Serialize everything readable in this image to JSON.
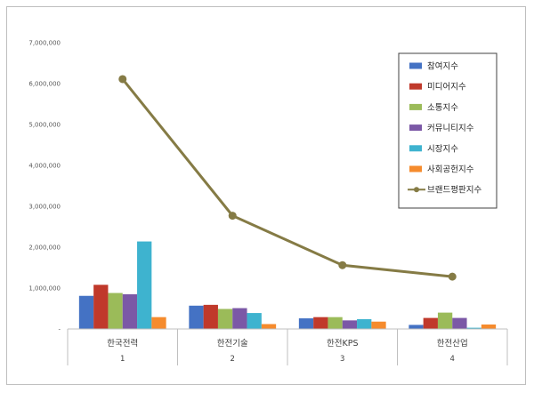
{
  "chart_data": {
    "type": "bar",
    "categories": [
      "한국전력",
      "한전기술",
      "한전KPS",
      "한전산업"
    ],
    "category_index": [
      "1",
      "2",
      "3",
      "4"
    ],
    "ylim": [
      0,
      7000000
    ],
    "yticks": [
      0,
      1000000,
      2000000,
      3000000,
      4000000,
      5000000,
      6000000,
      7000000
    ],
    "ytick_labels": [
      "-",
      "1,000,000",
      "2,000,000",
      "3,000,000",
      "4,000,000",
      "5,000,000",
      "6,000,000",
      "7,000,000"
    ],
    "grid": false,
    "legend_position": "top-right",
    "series": [
      {
        "name": "참여지수",
        "color": "#4472c4",
        "values": [
          810000,
          570000,
          260000,
          100000
        ]
      },
      {
        "name": "미디어지수",
        "color": "#c0392b",
        "values": [
          1080000,
          590000,
          290000,
          270000
        ]
      },
      {
        "name": "소통지수",
        "color": "#9bbb59",
        "values": [
          880000,
          490000,
          290000,
          400000
        ]
      },
      {
        "name": "커뮤니티지수",
        "color": "#7b58a6",
        "values": [
          850000,
          510000,
          210000,
          270000
        ]
      },
      {
        "name": "시장지수",
        "color": "#3eb3cf",
        "values": [
          2140000,
          390000,
          240000,
          30000
        ]
      },
      {
        "name": "사회공헌지수",
        "color": "#f58b2d",
        "values": [
          290000,
          120000,
          180000,
          110000
        ]
      }
    ],
    "line_series": {
      "name": "브랜드평판지수",
      "color": "#857b45",
      "values": [
        6110000,
        2770000,
        1560000,
        1280000
      ]
    }
  }
}
